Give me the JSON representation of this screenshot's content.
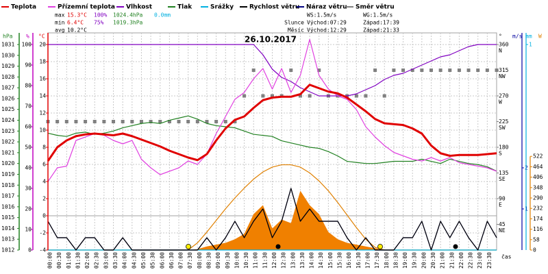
{
  "chart_data": {
    "type": "line",
    "title": "26.10.2017",
    "xlabel": "čas",
    "xlim": [
      0,
      24
    ],
    "x": [
      0,
      0.5,
      1,
      1.5,
      2,
      2.5,
      3,
      3.5,
      4,
      4.5,
      5,
      5.5,
      6,
      6.5,
      7,
      7.5,
      8,
      8.5,
      9,
      9.5,
      10,
      10.5,
      11,
      11.5,
      12,
      12.5,
      13,
      13.5,
      14,
      14.5,
      15,
      15.5,
      16,
      16.5,
      17,
      17.5,
      18,
      18.5,
      19,
      19.5,
      20,
      20.5,
      21,
      21.5,
      22,
      22.5,
      23,
      23.5,
      24
    ],
    "xticks": [
      {
        "value": 0,
        "label": "00:00"
      },
      {
        "value": 0.5,
        "label": "00:30"
      },
      {
        "value": 1,
        "label": "01:00"
      },
      {
        "value": 1.5,
        "label": "01:30"
      },
      {
        "value": 2,
        "label": "02:00"
      },
      {
        "value": 2.5,
        "label": "02:30"
      },
      {
        "value": 3,
        "label": "03:00"
      },
      {
        "value": 3.5,
        "label": "03:30"
      },
      {
        "value": 4,
        "label": "04:00"
      },
      {
        "value": 4.5,
        "label": "04:30"
      },
      {
        "value": 5,
        "label": "05:00"
      },
      {
        "value": 5.5,
        "label": "05:30"
      },
      {
        "value": 6,
        "label": "06:00"
      },
      {
        "value": 6.5,
        "label": "06:30"
      },
      {
        "value": 7,
        "label": "07:00"
      },
      {
        "value": 7.5,
        "label": "07:30"
      },
      {
        "value": 8,
        "label": "08:00"
      },
      {
        "value": 8.5,
        "label": "08:30"
      },
      {
        "value": 9,
        "label": "09:00"
      },
      {
        "value": 9.5,
        "label": "09:30"
      },
      {
        "value": 10,
        "label": "10:00"
      },
      {
        "value": 10.5,
        "label": "10:30"
      },
      {
        "value": 11,
        "label": "11:00"
      },
      {
        "value": 11.5,
        "label": "11:30"
      },
      {
        "value": 12,
        "label": "12:00"
      },
      {
        "value": 12.5,
        "label": "12:30"
      },
      {
        "value": 13,
        "label": "13:00"
      },
      {
        "value": 13.5,
        "label": "13:30"
      },
      {
        "value": 14,
        "label": "14:00"
      },
      {
        "value": 14.5,
        "label": "14:30"
      },
      {
        "value": 15,
        "label": "15:00"
      },
      {
        "value": 15.5,
        "label": "15:30"
      },
      {
        "value": 16,
        "label": "16:00"
      },
      {
        "value": 16.5,
        "label": "16:30"
      },
      {
        "value": 17,
        "label": "17:00"
      },
      {
        "value": 17.5,
        "label": "17:30"
      },
      {
        "value": 18,
        "label": "18:00"
      },
      {
        "value": 18.5,
        "label": "18:30"
      },
      {
        "value": 19,
        "label": "19:00"
      },
      {
        "value": 19.5,
        "label": "19:30"
      },
      {
        "value": 20,
        "label": "20:00"
      },
      {
        "value": 20.5,
        "label": "20:30"
      },
      {
        "value": 21,
        "label": "21:00"
      },
      {
        "value": 21.5,
        "label": "21:30"
      },
      {
        "value": 22,
        "label": "22:00"
      },
      {
        "value": 22.5,
        "label": "22:30"
      },
      {
        "value": 23,
        "label": "23:00"
      },
      {
        "value": 23.5,
        "label": "23:30"
      }
    ],
    "grid": true,
    "axes": {
      "hpa": {
        "label": "hPa",
        "color": "#208020",
        "lim": [
          1012,
          1031
        ],
        "ticks": [
          1012,
          1013,
          1014,
          1015,
          1016,
          1017,
          1018,
          1019,
          1020,
          1021,
          1022,
          1023,
          1024,
          1025,
          1026,
          1027,
          1028,
          1029,
          1030,
          1031
        ]
      },
      "pct": {
        "label": "%",
        "color": "#c000c0",
        "lim": [
          0,
          100
        ],
        "ticks": [
          0,
          10,
          20,
          30,
          40,
          50,
          60,
          70,
          80,
          90,
          100
        ]
      },
      "temp": {
        "label": "°C",
        "color": "#e00000",
        "lim": [
          -4,
          20
        ],
        "ticks": [
          -4,
          -2,
          0,
          2,
          4,
          6,
          8,
          10,
          12,
          14,
          16,
          18,
          20
        ]
      },
      "dir": {
        "label": "°",
        "color": "#808080",
        "lim": [
          0,
          360
        ],
        "ticks": [
          45,
          90,
          135,
          180,
          225,
          270,
          315,
          360
        ],
        "compass": [
          "NE",
          "E",
          "SE",
          "S",
          "SW",
          "W",
          "NW",
          "N"
        ]
      },
      "ms": {
        "label": "m/s",
        "color": "#0000a0",
        "lim": [
          0,
          5
        ],
        "ticks": [
          1,
          2
        ]
      },
      "mm": {
        "label": "mm",
        "color": "#00b0e0",
        "lim": [
          0,
          1
        ],
        "ticks": [
          1
        ]
      },
      "w": {
        "label": "W",
        "color": "#e08000",
        "lim": [
          0,
          1145
        ],
        "ticks": [
          0,
          58,
          116,
          174,
          232,
          290,
          348,
          406,
          464,
          522
        ]
      }
    },
    "series": [
      {
        "name": "Teplota",
        "color": "#e00000",
        "axis": "temp",
        "values": [
          6.4,
          8.0,
          8.8,
          9.3,
          9.5,
          9.6,
          9.5,
          9.4,
          9.6,
          9.3,
          8.9,
          8.5,
          8.1,
          7.6,
          7.2,
          6.8,
          6.5,
          7.2,
          8.8,
          10.2,
          11.2,
          11.6,
          12.6,
          13.5,
          13.8,
          13.9,
          13.9,
          14.2,
          15.3,
          14.9,
          14.5,
          14.3,
          13.8,
          13.0,
          12.2,
          11.3,
          10.8,
          10.7,
          10.6,
          10.2,
          9.6,
          8.2,
          7.3,
          7.0,
          7.1,
          7.1,
          7.1,
          7.2,
          7.3
        ]
      },
      {
        "name": "Přízemní teplota",
        "color": "#e040e0",
        "axis": "temp",
        "values": [
          4.0,
          5.6,
          5.8,
          8.8,
          9.2,
          9.6,
          9.4,
          8.8,
          8.4,
          8.8,
          6.6,
          5.6,
          4.8,
          5.2,
          5.6,
          6.4,
          6.0,
          7.2,
          9.6,
          11.6,
          13.6,
          14.4,
          16.0,
          17.2,
          14.8,
          17.2,
          14.4,
          16.4,
          20.6,
          16.4,
          14.8,
          14.0,
          13.6,
          12.4,
          10.4,
          9.2,
          8.2,
          7.4,
          7.0,
          6.6,
          6.4,
          6.8,
          6.4,
          6.8,
          6.2,
          6.0,
          5.8,
          5.6,
          5.2
        ]
      },
      {
        "name": "Vlhkost",
        "color": "#8000c0",
        "axis": "pct",
        "values": [
          100,
          100,
          100,
          100,
          100,
          100,
          100,
          100,
          100,
          100,
          100,
          100,
          100,
          100,
          100,
          100,
          100,
          100,
          100,
          100,
          100,
          100,
          100,
          95,
          88,
          84,
          82,
          79,
          77,
          75,
          75,
          75,
          75,
          76,
          78,
          80,
          83,
          85,
          86,
          88,
          90,
          92,
          94,
          95,
          97,
          99,
          100,
          100,
          100
        ]
      },
      {
        "name": "Tlak",
        "color": "#208020",
        "axis": "hpa",
        "values": [
          1022.8,
          1022.6,
          1022.5,
          1022.8,
          1022.9,
          1022.7,
          1022.8,
          1023.0,
          1023.3,
          1023.5,
          1023.7,
          1023.8,
          1023.7,
          1024.0,
          1024.2,
          1024.4,
          1024.1,
          1023.7,
          1023.5,
          1023.4,
          1023.3,
          1023.0,
          1022.7,
          1022.6,
          1022.5,
          1022.1,
          1021.9,
          1021.7,
          1021.5,
          1021.4,
          1021.1,
          1020.7,
          1020.2,
          1020.1,
          1020.0,
          1020.0,
          1020.1,
          1020.2,
          1020.2,
          1020.2,
          1020.4,
          1020.2,
          1020.0,
          1020.4,
          1020.2,
          1020.0,
          1019.9,
          1019.7,
          1019.3
        ]
      },
      {
        "name": "Srážky",
        "color": "#00b0e0",
        "axis": "mm",
        "values": [
          0,
          0,
          0,
          0,
          0,
          0,
          0,
          0,
          0,
          0,
          0,
          0,
          0,
          0,
          0,
          0,
          0,
          0,
          0,
          0,
          0,
          0,
          0,
          0,
          0,
          0,
          0,
          0,
          0,
          0,
          0,
          0,
          0,
          0,
          0,
          0,
          0,
          0,
          0,
          0,
          0,
          0,
          0,
          0,
          0,
          0,
          0,
          0,
          0
        ]
      },
      {
        "name": "Náraz větru",
        "color": "#000080",
        "axis": "ms",
        "values": [
          0.7,
          0.3,
          0.3,
          0,
          0.3,
          0.3,
          0,
          0,
          0.3,
          0,
          0,
          0,
          0,
          0,
          0,
          0,
          0,
          0.3,
          0,
          0.3,
          0.7,
          0.3,
          0.7,
          1.0,
          0.3,
          0.7,
          1.5,
          0.7,
          1.0,
          0.7,
          0.7,
          0.7,
          0.3,
          0,
          0.3,
          0,
          0,
          0,
          0.3,
          0.3,
          0.7,
          0,
          0.7,
          0.3,
          0.7,
          0.3,
          0,
          0.7,
          0.3
        ]
      },
      {
        "name": "Rychlost větru",
        "color": "#000000",
        "axis": "ms",
        "values": [
          0.7,
          0.3,
          0.3,
          0,
          0.3,
          0.3,
          0,
          0,
          0.3,
          0,
          0,
          0,
          0,
          0,
          0,
          0,
          0,
          0.3,
          0,
          0.3,
          0.7,
          0.3,
          0.7,
          1.0,
          0.3,
          0.7,
          1.5,
          0.7,
          1.0,
          0.7,
          0.7,
          0.7,
          0.3,
          0,
          0.3,
          0,
          0,
          0,
          0.3,
          0.3,
          0.7,
          0,
          0.7,
          0.3,
          0.7,
          0.3,
          0,
          0.7,
          0.3
        ]
      },
      {
        "name": "Směr větru",
        "color": "#808080",
        "axis": "dir",
        "style": "squares",
        "values": [
          225,
          225,
          225,
          225,
          225,
          225,
          225,
          225,
          225,
          225,
          225,
          225,
          225,
          225,
          225,
          225,
          225,
          225,
          225,
          225,
          225,
          270,
          315,
          270,
          270,
          270,
          315,
          270,
          270,
          315,
          270,
          270,
          270,
          270,
          270,
          315,
          270,
          315,
          315,
          315,
          315,
          315,
          315,
          315,
          315,
          315,
          315,
          315,
          315
        ]
      }
    ],
    "legend_order": [
      "Teplota",
      "Přízemní teplota",
      "Vlhkost",
      "Tlak",
      "Srážky",
      "Rychlost větru",
      "Náraz větru",
      "Směr větru"
    ],
    "radiation": {
      "color": "#f08000",
      "axis": "w",
      "values": [
        0,
        0,
        0,
        0,
        0,
        0,
        0,
        0,
        0,
        0,
        0,
        0,
        0,
        0,
        0,
        0,
        5,
        20,
        30,
        40,
        60,
        90,
        200,
        250,
        120,
        170,
        150,
        330,
        250,
        200,
        100,
        60,
        40,
        30,
        20,
        10,
        0,
        0,
        0,
        0,
        0,
        0,
        0,
        0,
        0,
        0,
        0,
        0,
        0
      ]
    },
    "sun_curve": {
      "color": "#e08000",
      "axis": "w",
      "values": [
        0,
        0,
        0,
        0,
        0,
        0,
        0,
        0,
        0,
        0,
        0,
        0,
        0,
        0,
        0,
        0,
        40,
        100,
        165,
        230,
        290,
        345,
        395,
        435,
        462,
        475,
        475,
        462,
        430,
        385,
        330,
        265,
        195,
        125,
        60,
        15,
        0,
        0,
        0,
        0,
        0,
        0,
        0,
        0,
        0,
        0,
        0,
        0,
        0
      ]
    },
    "stats": [
      {
        "label": "max",
        "temp": "15.3°C",
        "humidity": "100%",
        "pressure": "1024.4hPa",
        "rain": "0.0mm"
      },
      {
        "label": "min",
        "temp": "6.4°C",
        "humidity": "75%",
        "pressure": "1019.3hPa"
      },
      {
        "label": "avg",
        "temp": "10.2°C"
      }
    ],
    "info": {
      "ws": "WS:1.5m/s",
      "wg": "WG:1.5m/s",
      "sun": {
        "label": "Slunce",
        "rise": "Východ:07:29",
        "set": "Západ:17:39"
      },
      "moon": {
        "label": "Měsíc",
        "rise": "Východ:12:29",
        "set": "Západ:21:33"
      }
    }
  }
}
